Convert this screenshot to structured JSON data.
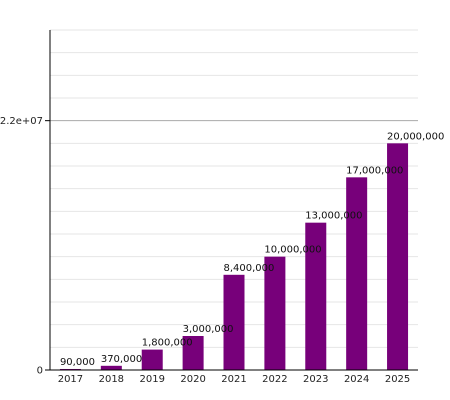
{
  "chart_data": {
    "type": "bar",
    "categories": [
      "2017",
      "2018",
      "2019",
      "2020",
      "2021",
      "2022",
      "2023",
      "2024",
      "2025"
    ],
    "values": [
      90000,
      370000,
      1800000,
      3000000,
      8400000,
      10000000,
      13000000,
      17000000,
      20000000
    ],
    "data_labels": [
      "90,000",
      "370,000",
      "1,800,000",
      "3,000,000",
      "8,400,000",
      "10,000,000",
      "13,000,000",
      "17,000,000",
      "20,000,000"
    ],
    "ylim": [
      0,
      30000000
    ],
    "y_ticks": [
      0,
      22000000
    ],
    "y_tick_labels": [
      "0",
      "2.2e+07"
    ],
    "grid": true,
    "bar_color": "#77007a",
    "grid_color": "#e6e6e6",
    "major_grid_color": "#aaaaaa"
  }
}
